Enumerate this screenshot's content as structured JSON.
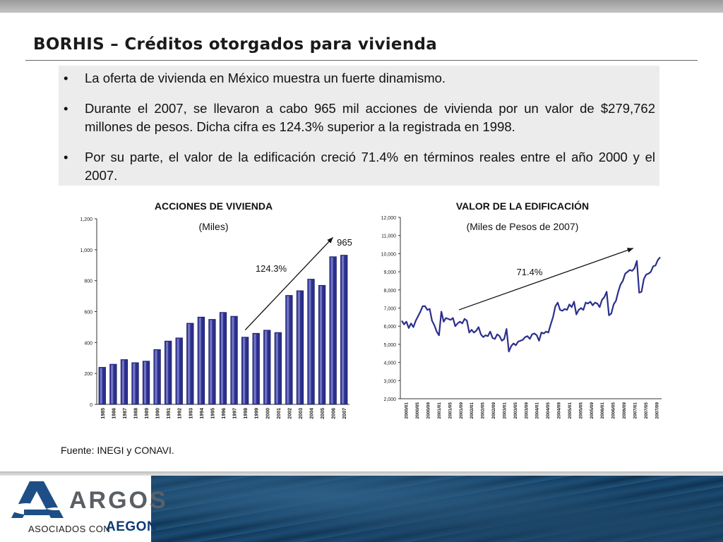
{
  "slide": {
    "title": "BORHIS – Créditos otorgados para vivienda",
    "bullets": [
      {
        "marker": "•",
        "text": "La oferta de vivienda en México muestra un fuerte dinamismo."
      },
      {
        "marker": "•",
        "text": "Durante el 2007, se llevaron a cabo 965 mil acciones de vivienda por un valor de $279,762 millones de pesos. Dicha cifra es 124.3% superior a la registrada en 1998."
      },
      {
        "marker": "•",
        "text": "Por su parte, el valor de la edificación creció 71.4% en términos reales entre el año 2000 y el 2007."
      }
    ],
    "source": "Fuente: INEGI y CONAVI."
  },
  "footer": {
    "logo_word": "ARGOS",
    "logo_sub": "ASOCIADOS CON",
    "partner": "AEGON"
  },
  "chart_data": [
    {
      "type": "bar",
      "title": "ACCIONES DE VIVIENDA",
      "subtitle": "(Miles)",
      "categories": [
        "1985",
        "1986",
        "1987",
        "1988",
        "1989",
        "1990",
        "1991",
        "1992",
        "1993",
        "1994",
        "1995",
        "1996",
        "1997",
        "1998",
        "1999",
        "2000",
        "2001",
        "2002",
        "2003",
        "2004",
        "2005",
        "2006",
        "2007"
      ],
      "values": [
        240,
        260,
        290,
        270,
        280,
        355,
        410,
        430,
        525,
        565,
        550,
        595,
        570,
        435,
        460,
        480,
        465,
        705,
        735,
        810,
        770,
        955,
        965
      ],
      "ylim": [
        0,
        1200
      ],
      "yticks": [
        0,
        200,
        400,
        600,
        800,
        1000,
        1200
      ],
      "ytick_labels": [
        "0",
        "200",
        "400",
        "600",
        "800",
        "1,000",
        "1,200"
      ],
      "bar_color": "#2b2f8c",
      "annotations": {
        "growth": "124.3%",
        "last_value": "965"
      }
    },
    {
      "type": "line",
      "title": "VALOR DE LA EDIFICACIÓN",
      "subtitle": "(Miles de Pesos de 2007)",
      "x_start": "2000/01",
      "x_end": "2007/09",
      "xtick_labels": [
        "2000/01",
        "2000/05",
        "2000/09",
        "2001/01",
        "2001/05",
        "2001/09",
        "2002/01",
        "2002/05",
        "2002/09",
        "2003/01",
        "2003/05",
        "2003/09",
        "2004/01",
        "2004/05",
        "2004/09",
        "2005/01",
        "2005/05",
        "2005/09",
        "2006/01",
        "2006/05",
        "2006/09",
        "2007/01",
        "2007/05",
        "2007/09"
      ],
      "values": [
        6300,
        6100,
        6250,
        5900,
        6150,
        5950,
        6300,
        6550,
        6800,
        7100,
        7100,
        6900,
        6950,
        6300,
        6050,
        5700,
        5500,
        6800,
        6250,
        6450,
        6400,
        6350,
        6450,
        6000,
        6150,
        6250,
        6150,
        6400,
        6300,
        5650,
        5800,
        5650,
        5750,
        5950,
        5550,
        5400,
        5500,
        5450,
        5700,
        5350,
        5300,
        5550,
        5450,
        5200,
        5300,
        5850,
        4600,
        4900,
        5050,
        4950,
        5150,
        5200,
        5250,
        5400,
        5450,
        5300,
        5550,
        5600,
        5500,
        5200,
        5650,
        5600,
        5700,
        5650,
        6100,
        6500,
        7100,
        7300,
        6900,
        6850,
        6950,
        6900,
        7200,
        7050,
        7350,
        6650,
        6900,
        7000,
        6900,
        7300,
        7250,
        7350,
        7150,
        7300,
        7250,
        7050,
        7450,
        7600,
        7900,
        6600,
        6700,
        7200,
        7400,
        7900,
        8300,
        8500,
        8900,
        9000,
        9100,
        9050,
        9200,
        9600,
        7850,
        7900,
        8600,
        8850,
        8900,
        9000,
        9300,
        9350,
        9650,
        9800
      ],
      "ylim": [
        2000,
        12000
      ],
      "yticks": [
        2000,
        3000,
        4000,
        5000,
        6000,
        7000,
        8000,
        9000,
        10000,
        11000,
        12000
      ],
      "ytick_labels": [
        "2,000",
        "3,000",
        "4,000",
        "5,000",
        "6,000",
        "7,000",
        "8,000",
        "9,000",
        "10,000",
        "11,000",
        "12,000"
      ],
      "line_color": "#2b2f8c",
      "annotations": {
        "growth": "71.4%"
      }
    }
  ]
}
